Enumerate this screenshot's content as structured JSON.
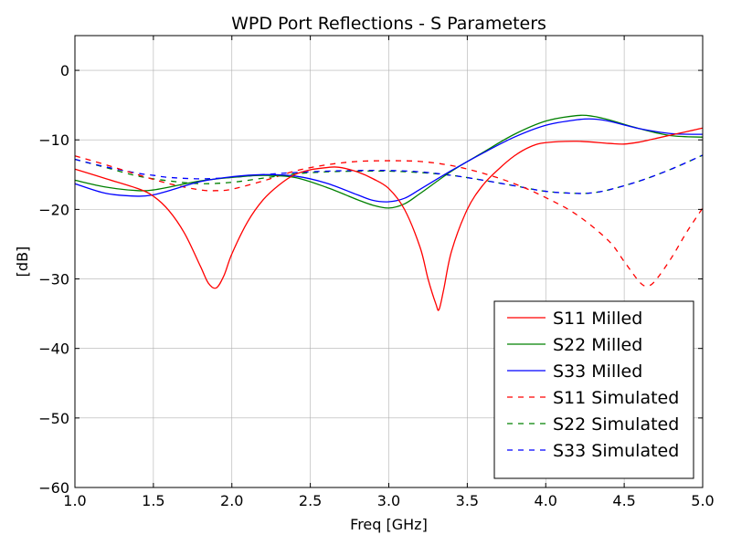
{
  "chart_data": {
    "type": "line",
    "title": "WPD Port Reflections - S Parameters",
    "xlabel": "Freq [GHz]",
    "ylabel": "[dB]",
    "xlim": [
      1.0,
      5.0
    ],
    "ylim": [
      -60,
      5
    ],
    "xticks": [
      1.0,
      1.5,
      2.0,
      2.5,
      3.0,
      3.5,
      4.0,
      4.5,
      5.0
    ],
    "xtick_labels": [
      "1.0",
      "1.5",
      "2.0",
      "2.5",
      "3.0",
      "3.5",
      "4.0",
      "4.5",
      "5.0"
    ],
    "yticks": [
      0,
      -10,
      -20,
      -30,
      -40,
      -50,
      -60
    ],
    "ytick_labels": [
      "0",
      "−10",
      "−20",
      "−30",
      "−40",
      "−50",
      "−60"
    ],
    "grid": true,
    "legend_position": "lower-right",
    "series": [
      {
        "name": "S11 Milled",
        "color": "#ff0000",
        "dash": "solid",
        "x": [
          1.0,
          1.2,
          1.4,
          1.5,
          1.6,
          1.7,
          1.8,
          1.85,
          1.9,
          1.95,
          2.0,
          2.1,
          2.2,
          2.3,
          2.4,
          2.5,
          2.6,
          2.65,
          2.7,
          2.8,
          2.9,
          3.0,
          3.1,
          3.2,
          3.25,
          3.3,
          3.32,
          3.35,
          3.4,
          3.5,
          3.6,
          3.7,
          3.8,
          3.9,
          4.0,
          4.2,
          4.4,
          4.5,
          4.6,
          4.7,
          4.8,
          4.9,
          5.0
        ],
        "y": [
          -14.2,
          -15.6,
          -17.0,
          -18.1,
          -20.2,
          -23.5,
          -28.2,
          -30.6,
          -31.3,
          -29.5,
          -26.4,
          -21.8,
          -18.6,
          -16.5,
          -15.0,
          -14.3,
          -14.0,
          -13.9,
          -14.0,
          -14.6,
          -15.6,
          -17.0,
          -20.0,
          -25.5,
          -30.0,
          -33.6,
          -34.4,
          -31.5,
          -26.0,
          -20.0,
          -16.5,
          -14.2,
          -12.3,
          -11.0,
          -10.4,
          -10.2,
          -10.5,
          -10.6,
          -10.3,
          -9.8,
          -9.3,
          -8.8,
          -8.3
        ]
      },
      {
        "name": "S22 Milled",
        "color": "#008000",
        "dash": "solid",
        "x": [
          1.0,
          1.2,
          1.4,
          1.5,
          1.6,
          1.8,
          2.0,
          2.2,
          2.4,
          2.6,
          2.8,
          2.9,
          3.0,
          3.1,
          3.2,
          3.4,
          3.6,
          3.8,
          4.0,
          4.2,
          4.3,
          4.4,
          4.6,
          4.8,
          5.0
        ],
        "y": [
          -15.8,
          -16.8,
          -17.3,
          -17.2,
          -16.8,
          -15.9,
          -15.4,
          -15.1,
          -15.4,
          -16.8,
          -18.6,
          -19.4,
          -19.8,
          -19.2,
          -17.7,
          -14.5,
          -11.8,
          -9.2,
          -7.3,
          -6.5,
          -6.6,
          -7.1,
          -8.4,
          -9.4,
          -9.6
        ]
      },
      {
        "name": "S33 Milled",
        "color": "#0000ff",
        "dash": "solid",
        "x": [
          1.0,
          1.2,
          1.4,
          1.5,
          1.6,
          1.8,
          2.0,
          2.2,
          2.4,
          2.6,
          2.8,
          2.9,
          3.0,
          3.1,
          3.2,
          3.4,
          3.6,
          3.8,
          4.0,
          4.2,
          4.3,
          4.4,
          4.6,
          4.8,
          5.0
        ],
        "y": [
          -16.3,
          -17.7,
          -18.1,
          -17.9,
          -17.3,
          -16.0,
          -15.3,
          -15.0,
          -15.2,
          -16.2,
          -17.9,
          -18.7,
          -18.9,
          -18.4,
          -17.1,
          -14.4,
          -11.9,
          -9.6,
          -7.9,
          -7.1,
          -7.0,
          -7.3,
          -8.4,
          -9.1,
          -9.2
        ]
      },
      {
        "name": "S11 Simulated",
        "color": "#ff0000",
        "dash": "dashed",
        "x": [
          1.0,
          1.2,
          1.4,
          1.6,
          1.8,
          1.9,
          2.0,
          2.2,
          2.4,
          2.6,
          2.8,
          3.0,
          3.2,
          3.4,
          3.6,
          3.8,
          4.0,
          4.2,
          4.4,
          4.5,
          4.6,
          4.65,
          4.7,
          4.8,
          4.9,
          5.0
        ],
        "y": [
          -12.3,
          -13.6,
          -15.0,
          -16.3,
          -17.2,
          -17.3,
          -17.1,
          -15.9,
          -14.5,
          -13.6,
          -13.1,
          -13.0,
          -13.1,
          -13.7,
          -14.8,
          -16.3,
          -18.3,
          -20.8,
          -24.5,
          -27.5,
          -30.5,
          -31.0,
          -30.2,
          -27.0,
          -23.2,
          -19.8
        ]
      },
      {
        "name": "S22 Simulated",
        "color": "#008000",
        "dash": "dashed",
        "x": [
          1.0,
          1.2,
          1.4,
          1.6,
          1.8,
          2.0,
          2.2,
          2.4,
          2.6,
          2.8,
          3.0,
          3.2,
          3.4,
          3.6,
          3.8,
          4.0,
          4.2,
          4.3,
          4.4,
          4.6,
          4.8,
          5.0
        ],
        "y": [
          -12.8,
          -14.0,
          -15.2,
          -15.9,
          -16.3,
          -16.1,
          -15.5,
          -14.9,
          -14.6,
          -14.5,
          -14.5,
          -14.7,
          -15.1,
          -15.8,
          -16.6,
          -17.4,
          -17.7,
          -17.6,
          -17.2,
          -15.9,
          -14.2,
          -12.2
        ]
      },
      {
        "name": "S33 Simulated",
        "color": "#0000ff",
        "dash": "dashed",
        "x": [
          1.0,
          1.2,
          1.4,
          1.5,
          1.6,
          1.8,
          2.0,
          2.2,
          2.4,
          2.6,
          2.8,
          3.0,
          3.2,
          3.4,
          3.6,
          3.8,
          4.0,
          4.2,
          4.3,
          4.4,
          4.6,
          4.8,
          5.0
        ],
        "y": [
          -12.8,
          -13.9,
          -14.8,
          -15.1,
          -15.4,
          -15.6,
          -15.4,
          -15.0,
          -14.7,
          -14.5,
          -14.4,
          -14.4,
          -14.6,
          -15.1,
          -15.8,
          -16.6,
          -17.4,
          -17.7,
          -17.6,
          -17.2,
          -15.9,
          -14.2,
          -12.2
        ]
      }
    ]
  }
}
